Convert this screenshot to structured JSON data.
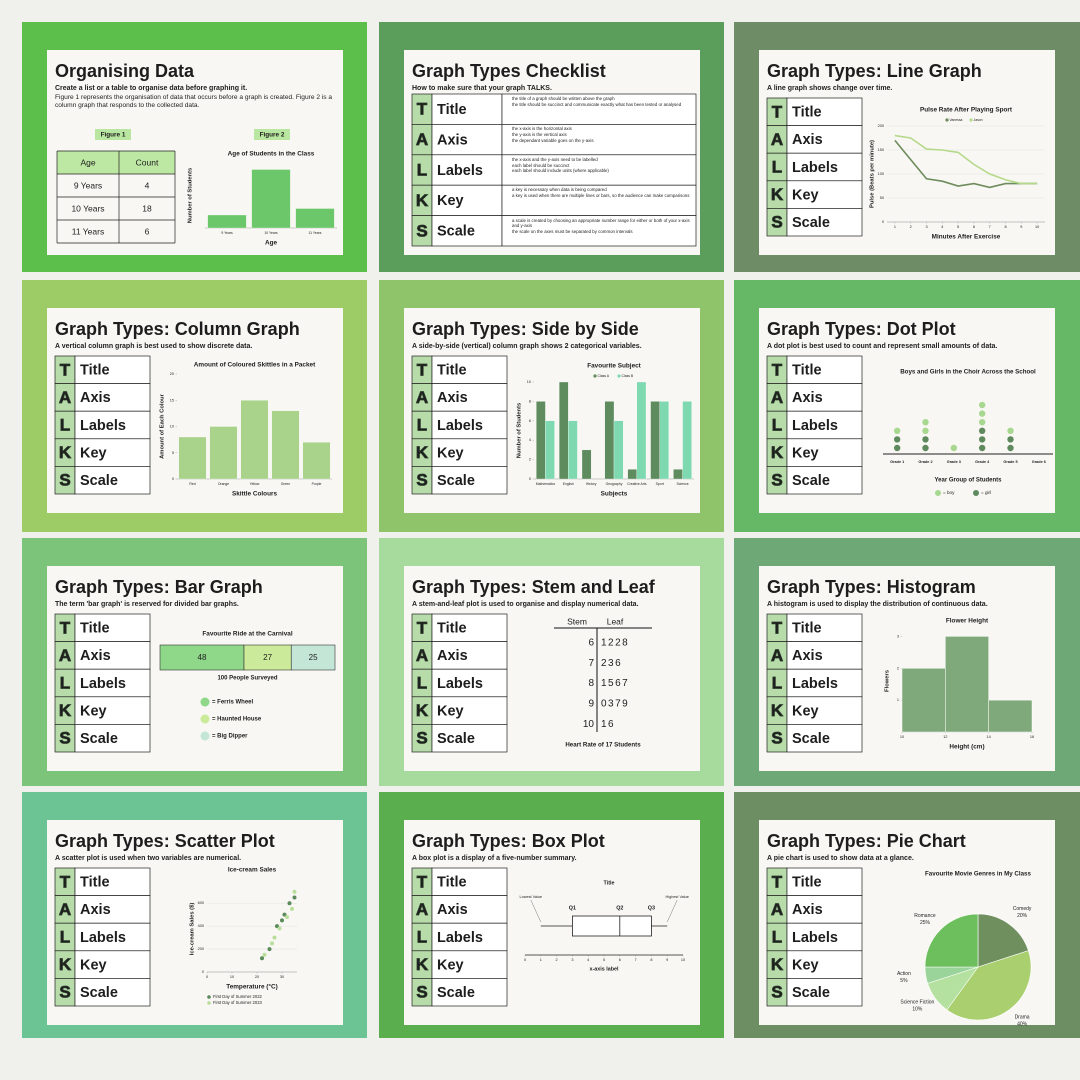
{
  "talks": [
    {
      "letter": "T",
      "word": "Title",
      "notes": [
        "the title of a graph should be written above the graph",
        "the title should be succinct and communicate exactly what has been tested or analysed"
      ]
    },
    {
      "letter": "A",
      "word": "Axis",
      "notes": [
        "the x-axis is the horizontal axis",
        "the y-axis is the vertical axis",
        "the dependant variable goes on the y-axis"
      ]
    },
    {
      "letter": "L",
      "word": "Labels",
      "notes": [
        "the x-axis and the y-axis need to be labelled",
        "each label should be succinct",
        "each label should include units (where applicable)"
      ]
    },
    {
      "letter": "K",
      "word": "Key",
      "notes": [
        "a key is necessary when data is being compared",
        "a key is used when there are multiple lines or bars, so the audience can make comparisons"
      ]
    },
    {
      "letter": "S",
      "word": "Scale",
      "notes": [
        "a scale is created by choosing an appropriate number range for either or both of your x-axis and y-axis",
        "the scale on the axes must be separated by common intervals"
      ]
    }
  ],
  "slides": [
    {
      "title": "Organising Data",
      "subtitle": "Create a list or a table to organise data before graphing it.",
      "color": "#5cbf4c",
      "text": "Figure 1 represents the organisation of data that occurs before a graph is created. Figure 2 is a column graph that responds to the collected data.",
      "table": {
        "label": "Figure 1",
        "header": [
          "Age",
          "Count"
        ],
        "rows": [
          [
            "9 Years",
            4
          ],
          [
            "10 Years",
            18
          ],
          [
            "11 Years",
            6
          ]
        ]
      },
      "chart_data": {
        "type": "bar",
        "label": "Figure 2",
        "title": "Age of Students in the Class",
        "x_label": "Age",
        "y_label": "Number of Students",
        "categories": [
          "9 Years",
          "10 Years",
          "11 Years"
        ],
        "values": [
          4,
          18,
          6
        ],
        "color": "#6cc76a",
        "ylim": [
          0,
          20
        ]
      }
    },
    {
      "title": "Graph Types Checklist",
      "subtitle": "How to make sure that your graph TALKS.",
      "color": "#5b9d5b"
    },
    {
      "title": "Graph Types: Line Graph",
      "subtitle": "A line graph shows change over time.",
      "color": "#6e8d66",
      "chart_data": {
        "type": "line",
        "title": "Pulse Rate After Playing Sport",
        "x_label": "Minutes After Exercise",
        "y_label": "Pulse (Beats per minute)",
        "x": [
          1,
          2,
          3,
          4,
          5,
          6,
          7,
          8,
          9,
          10
        ],
        "xlim": [
          0.5,
          10.5
        ],
        "xticks": [
          1,
          2,
          3,
          4,
          5,
          6,
          7,
          8,
          9,
          10
        ],
        "ylim": [
          0,
          200
        ],
        "yticks": [
          0,
          50,
          100,
          150,
          200
        ],
        "grid": true,
        "series": [
          {
            "name": "Vanessa",
            "color": "#6f8c5c",
            "values": [
              170,
              130,
              90,
              85,
              75,
              80,
              72,
              80,
              80,
              80
            ]
          },
          {
            "name": "Jason",
            "color": "#b5d98a",
            "values": [
              180,
              175,
              152,
              150,
              145,
              120,
              100,
              88,
              80,
              80
            ]
          }
        ]
      }
    },
    {
      "title": "Graph Types: Column Graph",
      "subtitle": "A vertical column graph is best used to show discrete data.",
      "color": "#9dcc66",
      "chart_data": {
        "type": "bar",
        "title": "Amount of Coloured Skittles in a Packet",
        "x_label": "Skittle Colours",
        "y_label": "Amount of Each Colour",
        "categories": [
          "Red",
          "Orange",
          "Yellow",
          "Green",
          "Purple"
        ],
        "values": [
          8,
          10,
          15,
          13,
          7
        ],
        "color": "#a9d28a",
        "ylim": [
          0,
          20
        ],
        "yticks": [
          0,
          5,
          10,
          15,
          20
        ]
      }
    },
    {
      "title": "Graph Types: Side by Side",
      "subtitle": "A side-by-side (vertical) column graph shows 2 categorical variables.",
      "color": "#8fc46a",
      "chart_data": {
        "type": "bar",
        "title": "Favourite Subject",
        "x_label": "Subjects",
        "y_label": "Number of Students",
        "categories": [
          "Mathematics",
          "English",
          "History",
          "Geography",
          "Creative Arts",
          "Sport",
          "Science"
        ],
        "ylim": [
          0,
          10
        ],
        "yticks": [
          0,
          2,
          4,
          6,
          8,
          10
        ],
        "series": [
          {
            "name": "Class A",
            "color": "#5e8c5e",
            "values": [
              8,
              10,
              3,
              8,
              1,
              8,
              1
            ]
          },
          {
            "name": "Class B",
            "color": "#7fd9b0",
            "values": [
              6,
              6,
              0,
              6,
              10,
              8,
              8
            ]
          }
        ]
      }
    },
    {
      "title": "Graph Types: Dot Plot",
      "subtitle": "A dot plot is best used to count and represent small amounts of data.",
      "color": "#66b866",
      "chart_data": {
        "type": "dot",
        "title": "Boys and Girls in the Choir Across the School",
        "x_label": "Year Group of Students",
        "categories": [
          "Grade 1",
          "Grade 2",
          "Grade 3",
          "Grade 4",
          "Grade 5",
          "Grade 6"
        ],
        "series": [
          {
            "name": "= boy",
            "color": "#a8d890",
            "values": [
              1,
              2,
              1,
              3,
              1,
              0
            ]
          },
          {
            "name": "= girl",
            "color": "#5e8a5e",
            "values": [
              2,
              2,
              0,
              3,
              2,
              0
            ]
          }
        ]
      }
    },
    {
      "title": "Graph Types: Bar Graph",
      "subtitle": "The term 'bar graph' is reserved for divided bar graphs.",
      "color": "#7cc47a",
      "chart_data": {
        "type": "divided_bar",
        "title": "Favourite Ride at the Carnival",
        "caption": "100 People Surveyed",
        "xlim": [
          0,
          100
        ],
        "series": [
          {
            "name": "= Ferris Wheel",
            "color": "#8fd88a",
            "values": [
              48
            ]
          },
          {
            "name": "= Haunted House",
            "color": "#cbea9a",
            "values": [
              27
            ]
          },
          {
            "name": "= Big Dipper",
            "color": "#c3e6d6",
            "values": [
              25
            ]
          }
        ]
      }
    },
    {
      "title": "Graph Types: Stem and Leaf",
      "subtitle": "A stem-and-leaf plot is used to organise and display numerical data.",
      "color": "#a7da9d",
      "chart_data": {
        "type": "stem_leaf",
        "header": [
          "Stem",
          "Leaf"
        ],
        "caption": "Heart Rate of 17 Students",
        "stems": [
          6,
          7,
          8,
          9,
          10
        ],
        "leaves": [
          "1228",
          "236",
          "1567",
          "0379",
          "16"
        ]
      }
    },
    {
      "title": "Graph Types: Histogram",
      "subtitle": "A histogram is used to display the distribution of continuous data.",
      "color": "#6fa877",
      "chart_data": {
        "type": "histogram",
        "title": "Flower Height",
        "x_label": "Height (cm)",
        "y_label": "Flowers",
        "bins": [
          10,
          12,
          14,
          16
        ],
        "values": [
          2,
          3,
          1
        ],
        "color": "#7fa97a",
        "xlim": [
          10,
          16
        ],
        "xticks": [
          10,
          12,
          14,
          16
        ],
        "ylim": [
          0,
          3.2
        ],
        "yticks": [
          1,
          2,
          3
        ]
      }
    },
    {
      "title": "Graph Types: Scatter Plot",
      "subtitle": "A scatter plot is used when two variables are numerical.",
      "color": "#6cc494",
      "chart_data": {
        "type": "scatter",
        "title": "Ice-cream Sales",
        "x_label": "Temperature (°C)",
        "y_label": "Ice-cream Sales ($)",
        "xlim": [
          0,
          36
        ],
        "xticks": [
          0,
          10,
          20,
          30
        ],
        "ylim": [
          0,
          750
        ],
        "yticks": [
          0,
          200,
          400,
          600
        ],
        "grid": true,
        "series": [
          {
            "name": "First Day of Summer 2022",
            "color": "#5a8a5a",
            "x": [
              22,
              25,
              28,
              30,
              31,
              33,
              35
            ],
            "values": [
              120,
              200,
              400,
              450,
              500,
              600,
              650
            ]
          },
          {
            "name": "First Day of Summer 2023",
            "color": "#b9dd9a",
            "x": [
              23,
              26,
              27,
              29,
              32,
              34,
              35
            ],
            "values": [
              150,
              250,
              300,
              380,
              480,
              550,
              700
            ]
          }
        ]
      }
    },
    {
      "title": "Graph Types: Box Plot",
      "subtitle": "A box plot is a display of a five-number summary.",
      "color": "#5aae4e",
      "chart_data": {
        "type": "box",
        "title": "Title",
        "x_label": "x-axis label",
        "labels": [
          "Lowest Value",
          "Q1",
          "Q2",
          "Q3",
          "Highest Value"
        ],
        "values": [
          1,
          3,
          6,
          8,
          9
        ],
        "xlim": [
          0,
          10
        ],
        "xticks": [
          0,
          1,
          2,
          3,
          4,
          5,
          6,
          7,
          8,
          9,
          10
        ]
      }
    },
    {
      "title": "Graph Types: Pie Chart",
      "subtitle": "A pie chart is used to show data at a glance.",
      "color": "#6d8e62",
      "chart_data": {
        "type": "pie",
        "title": "Favourite Movie Genres in My Class",
        "categories": [
          "Comedy",
          "Drama",
          "Science Fiction",
          "Action",
          "Romance"
        ],
        "values": [
          20,
          40,
          10,
          5,
          25
        ],
        "value_labels": [
          "20%",
          "40%",
          "10%",
          "5%",
          "25%"
        ],
        "colors": [
          "#6f8f5e",
          "#a9cf6f",
          "#b4e0a0",
          "#9ad49a",
          "#6cbf5c"
        ]
      }
    }
  ]
}
